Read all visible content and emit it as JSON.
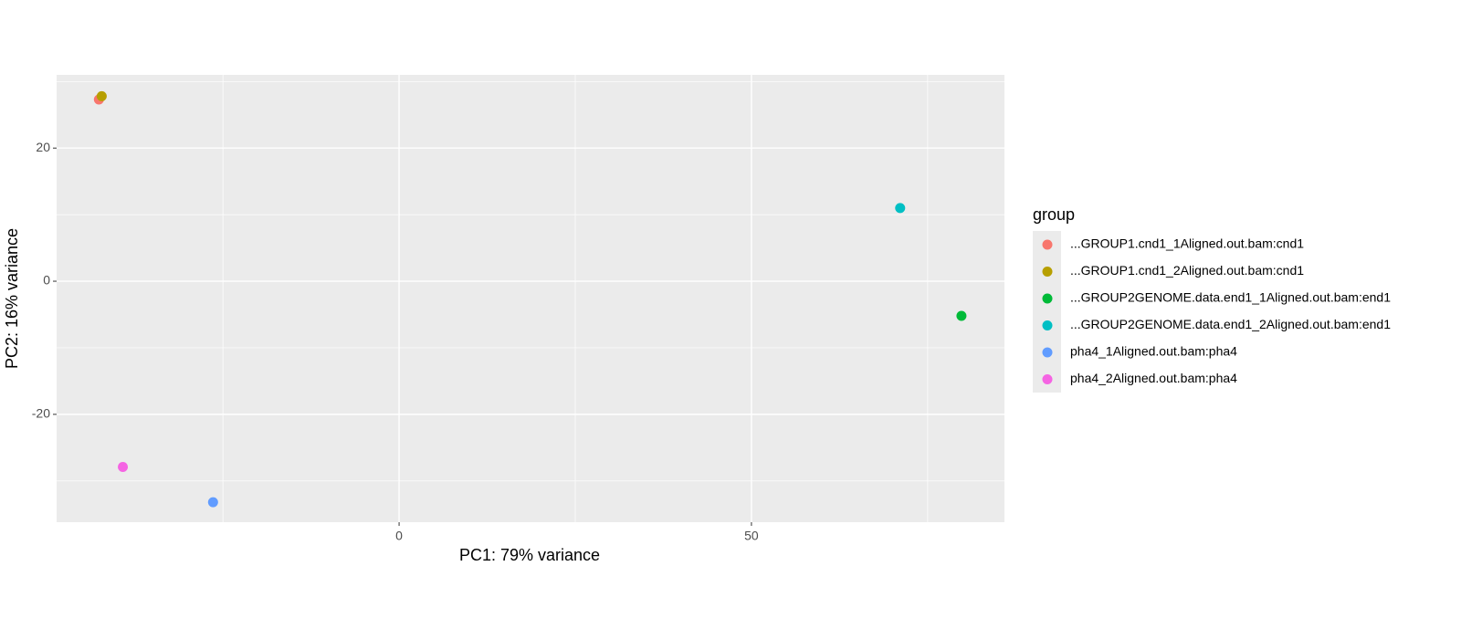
{
  "chart_data": {
    "type": "scatter",
    "xlabel": "PC1: 79% variance",
    "ylabel": "PC2: 16% variance",
    "legend_title": "group",
    "legend": "right",
    "grid": true,
    "xlim": [
      -48.6,
      85.9
    ],
    "xticks": [
      0,
      50
    ],
    "ylim": [
      -36.2,
      31.0
    ],
    "yticks": [
      20,
      0,
      -20
    ],
    "series": [
      {
        "name": "...GROUP1.cnd1_1Aligned.out.bam:cnd1",
        "color": "#F8766D",
        "x": [
          -42.6
        ],
        "values": [
          27.3
        ]
      },
      {
        "name": "...GROUP1.cnd1_2Aligned.out.bam:cnd1",
        "color": "#B79F00",
        "x": [
          -42.2
        ],
        "values": [
          27.8
        ]
      },
      {
        "name": "...GROUP2GENOME.data.end1_1Aligned.out.bam:end1",
        "color": "#00BA38",
        "x": [
          79.8
        ],
        "values": [
          -5.2
        ]
      },
      {
        "name": "...GROUP2GENOME.data.end1_2Aligned.out.bam:end1",
        "color": "#00BFC4",
        "x": [
          71.1
        ],
        "values": [
          11.0
        ]
      },
      {
        "name": "pha4_1Aligned.out.bam:pha4",
        "color": "#619CFF",
        "x": [
          -26.4
        ],
        "values": [
          -33.2
        ]
      },
      {
        "name": "pha4_2Aligned.out.bam:pha4",
        "color": "#F564E3",
        "x": [
          -39.2
        ],
        "values": [
          -27.9
        ]
      }
    ]
  }
}
